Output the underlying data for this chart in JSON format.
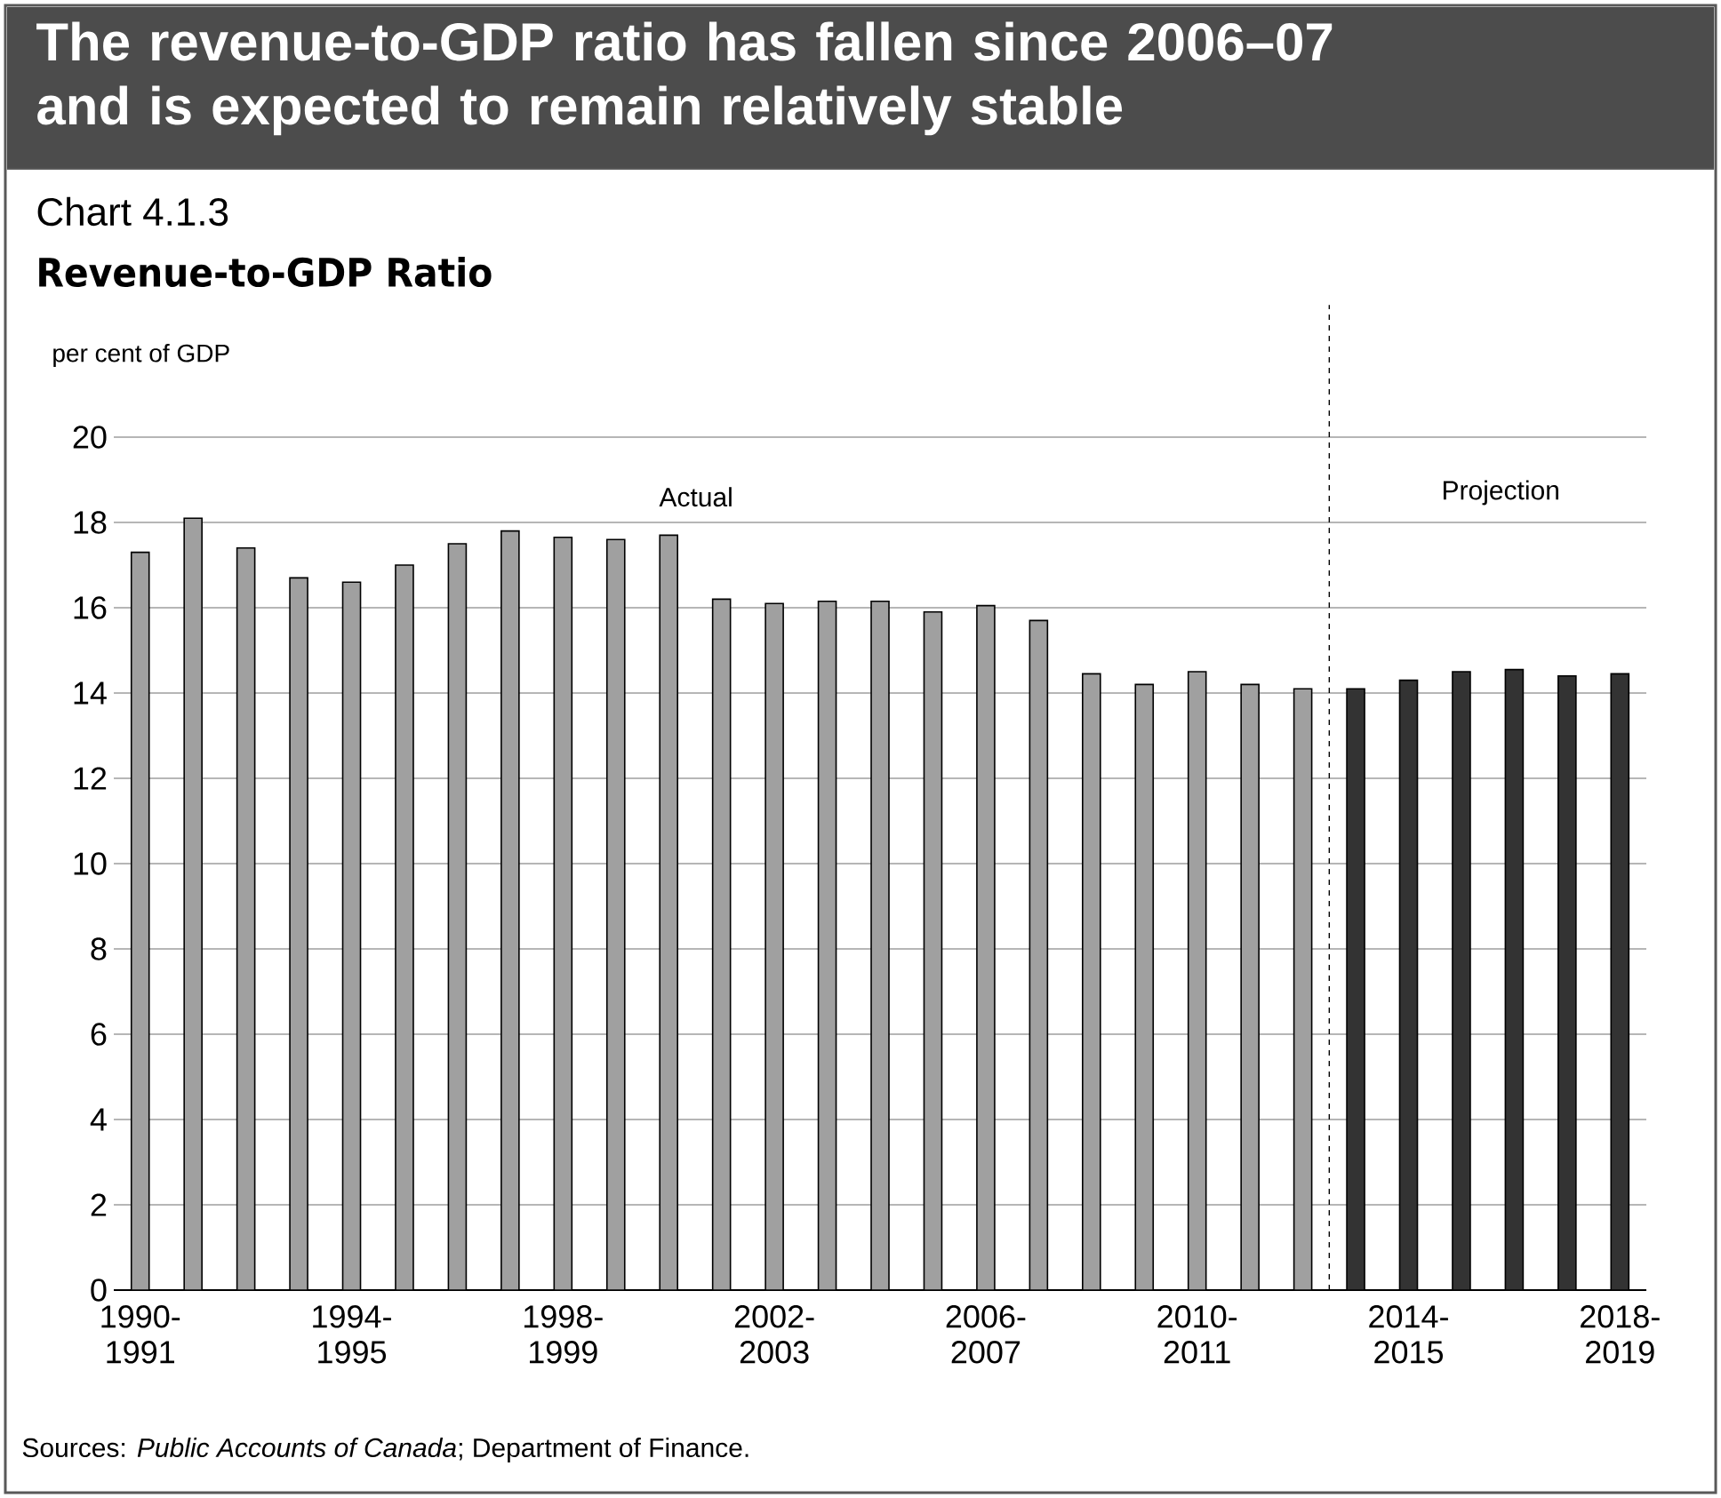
{
  "chart_data": {
    "type": "bar",
    "title": "The revenue-to-GDP ratio has fallen since 2006–07 and is expected to remain relatively stable",
    "subtitle": "Revenue-to-GDP Ratio",
    "ylabel": "per cent of GDP",
    "categories": [
      "1990-1991",
      null,
      null,
      null,
      "1994-1995",
      null,
      null,
      null,
      "1998-1999",
      null,
      null,
      null,
      "2002-2003",
      null,
      null,
      null,
      "2006-2007",
      null,
      null,
      null,
      "2010-2011",
      null,
      null,
      null,
      "2014-2015",
      null,
      null,
      null,
      "2018-2019"
    ],
    "values": [
      17.3,
      18.1,
      17.4,
      16.7,
      16.6,
      17.0,
      17.5,
      17.8,
      17.65,
      17.6,
      17.7,
      16.2,
      16.1,
      16.15,
      16.15,
      15.9,
      16.05,
      15.7,
      14.45,
      14.2,
      14.5,
      14.2,
      14.1,
      14.1,
      14.3,
      14.5,
      14.55,
      14.4,
      14.45
    ],
    "colors": [
      "#a0a0a0",
      "#a0a0a0",
      "#a0a0a0",
      "#a0a0a0",
      "#a0a0a0",
      "#a0a0a0",
      "#a0a0a0",
      "#a0a0a0",
      "#a0a0a0",
      "#a0a0a0",
      "#a0a0a0",
      "#a0a0a0",
      "#a0a0a0",
      "#a0a0a0",
      "#a0a0a0",
      "#a0a0a0",
      "#a0a0a0",
      "#a0a0a0",
      "#a0a0a0",
      "#a0a0a0",
      "#a0a0a0",
      "#a0a0a0",
      "#a0a0a0",
      "#333333",
      "#333333",
      "#333333",
      "#333333",
      "#333333",
      "#333333"
    ],
    "ylim": [
      0,
      20
    ],
    "yticks": [
      0,
      2,
      4,
      6,
      8,
      10,
      12,
      14,
      16,
      18,
      20
    ],
    "grid": "y",
    "annotations": [
      "Chart 4.1.3",
      "Actual",
      "Projection",
      "Sources: *Public Accounts of Canada*; Department of Finance."
    ]
  }
}
